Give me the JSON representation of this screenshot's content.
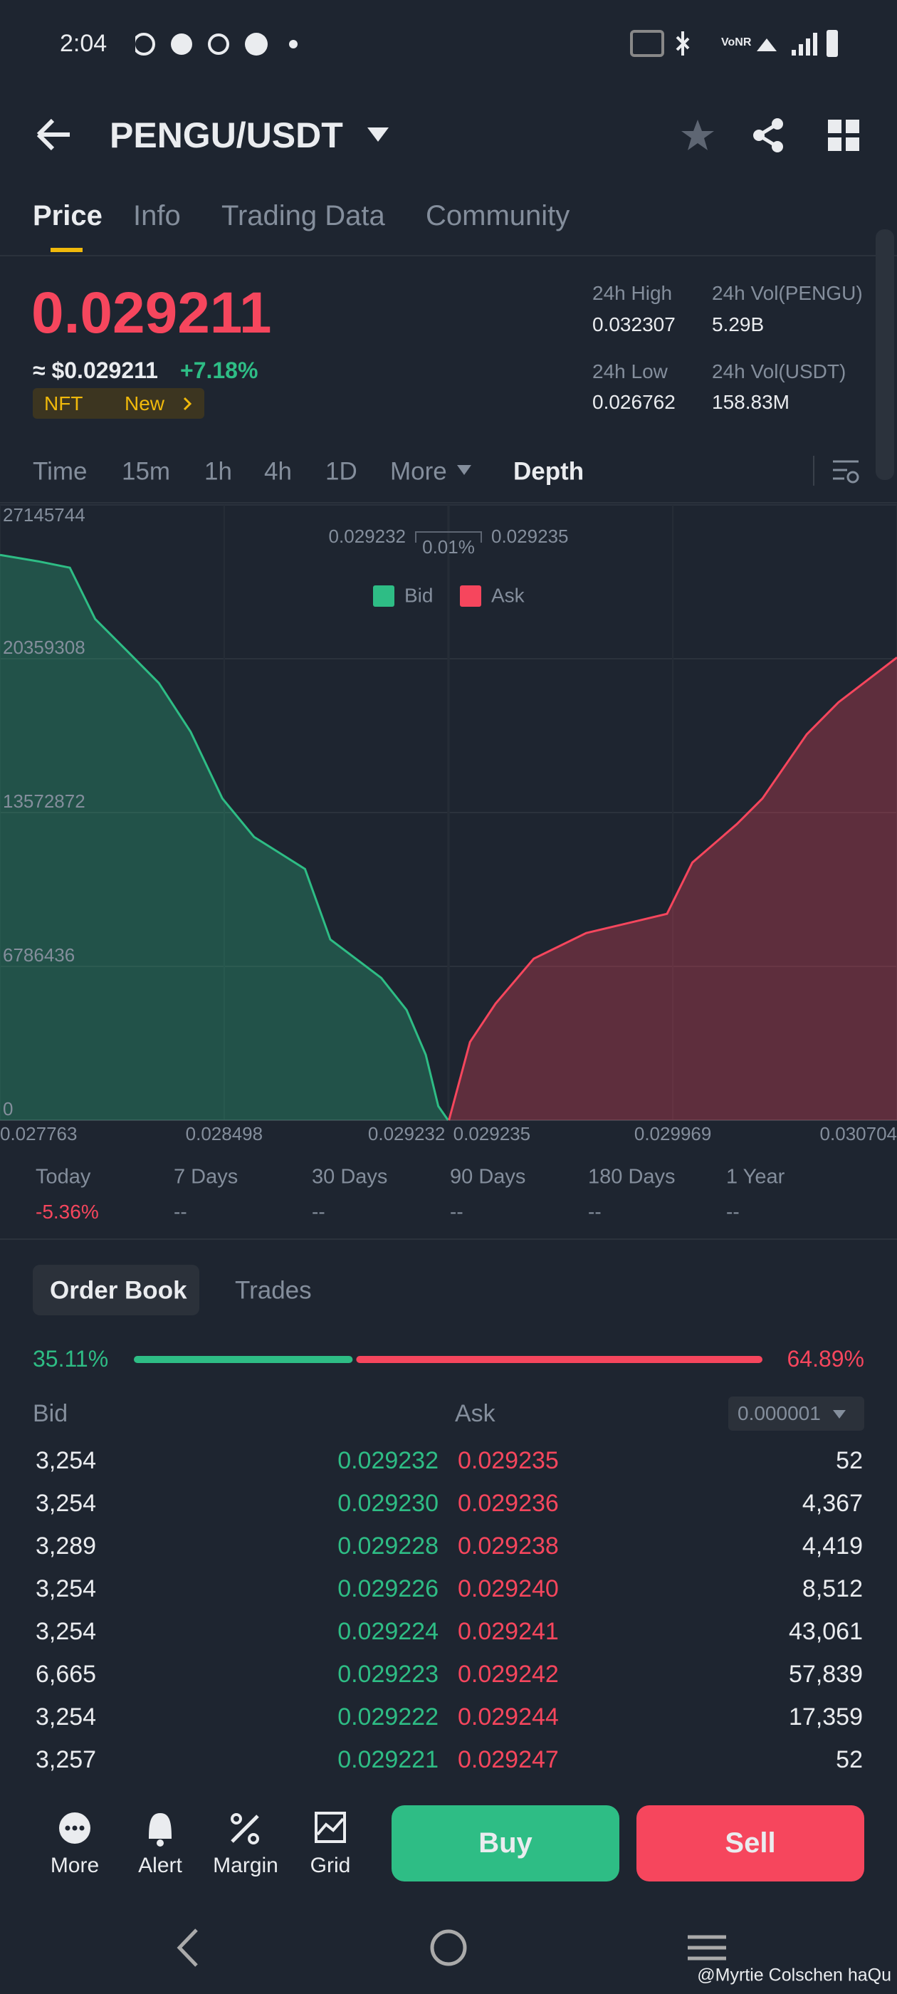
{
  "status_bar": {
    "time": "2:04"
  },
  "header": {
    "title": "PENGU/USDT"
  },
  "tabs": [
    "Price",
    "Info",
    "Trading Data",
    "Community"
  ],
  "ticker": {
    "price": "0.029211",
    "usd_price": "≈ $0.029211",
    "change": "+7.18%",
    "tags": [
      "NFT",
      "New"
    ],
    "stats": [
      {
        "label": "24h High",
        "value": "0.032307"
      },
      {
        "label": "24h Vol(PENGU)",
        "value": "5.29B"
      },
      {
        "label": "24h Low",
        "value": "0.026762"
      },
      {
        "label": "24h Vol(USDT)",
        "value": "158.83M"
      }
    ]
  },
  "intervals": [
    "Time",
    "15m",
    "1h",
    "4h",
    "1D",
    "More",
    "Depth"
  ],
  "chart_data": {
    "type": "depth",
    "spread": {
      "bid": "0.029232",
      "percent": "0.01%",
      "ask": "0.029235"
    },
    "xlim": [
      0.027763,
      0.030704
    ],
    "xticks": [
      0.027763,
      0.028498,
      0.029232,
      0.029235,
      0.029969,
      0.030704
    ],
    "ylim": [
      0,
      27145744
    ],
    "yticks": [
      0,
      6786436,
      13572872,
      20359308,
      27145744
    ],
    "grid": true,
    "series": [
      {
        "name": "Bid",
        "color": "#2ebd85",
        "x": [
          0.027763,
          0.027888,
          0.027992,
          0.028075,
          0.02818,
          0.028284,
          0.028388,
          0.028492,
          0.028596,
          0.028763,
          0.028846,
          0.029013,
          0.029096,
          0.029159,
          0.0292,
          0.029232
        ],
        "values": [
          24940000,
          24657000,
          24375000,
          22113000,
          20699000,
          19285000,
          17136000,
          14195000,
          12498000,
          11085000,
          7974000,
          6278000,
          4864000,
          2884000,
          622000,
          3254
        ]
      },
      {
        "name": "Ask",
        "color": "#f6465d",
        "x": [
          0.029235,
          0.029304,
          0.029388,
          0.029513,
          0.029685,
          0.02995,
          0.030033,
          0.030179,
          0.030263,
          0.030408,
          0.030512,
          0.030704
        ],
        "values": [
          52,
          3450000,
          5146000,
          7126000,
          8257000,
          9105000,
          11367000,
          13064000,
          14195000,
          17023000,
          18436000,
          20416000
        ]
      }
    ]
  },
  "periods": [
    {
      "label": "Today",
      "value": "-5.36%"
    },
    {
      "label": "7 Days",
      "value": "--"
    },
    {
      "label": "30 Days",
      "value": "--"
    },
    {
      "label": "90 Days",
      "value": "--"
    },
    {
      "label": "180 Days",
      "value": "--"
    },
    {
      "label": "1 Year",
      "value": "--"
    }
  ],
  "order_book": {
    "tabs": [
      "Order Book",
      "Trades"
    ],
    "ratio": {
      "bid": {
        "value": 35.11,
        "label": "35.11%"
      },
      "ask": {
        "value": 64.89,
        "label": "64.89%"
      }
    },
    "bid_header": "Bid",
    "ask_header": "Ask",
    "precision": "0.000001",
    "rows": [
      [
        "3,254",
        "0.029232",
        "0.029235",
        "52"
      ],
      [
        "3,254",
        "0.029230",
        "0.029236",
        "4,367"
      ],
      [
        "3,289",
        "0.029228",
        "0.029238",
        "4,419"
      ],
      [
        "3,254",
        "0.029226",
        "0.029240",
        "8,512"
      ],
      [
        "3,254",
        "0.029224",
        "0.029241",
        "43,061"
      ],
      [
        "6,665",
        "0.029223",
        "0.029242",
        "57,839"
      ],
      [
        "3,254",
        "0.029222",
        "0.029244",
        "17,359"
      ],
      [
        "3,257",
        "0.029221",
        "0.029247",
        "52"
      ]
    ]
  },
  "bottom_bar": {
    "actions": [
      "More",
      "Alert",
      "Margin",
      "Grid"
    ],
    "buy": "Buy",
    "sell": "Sell"
  },
  "watermark": "@Myrtie Colschen haQu"
}
